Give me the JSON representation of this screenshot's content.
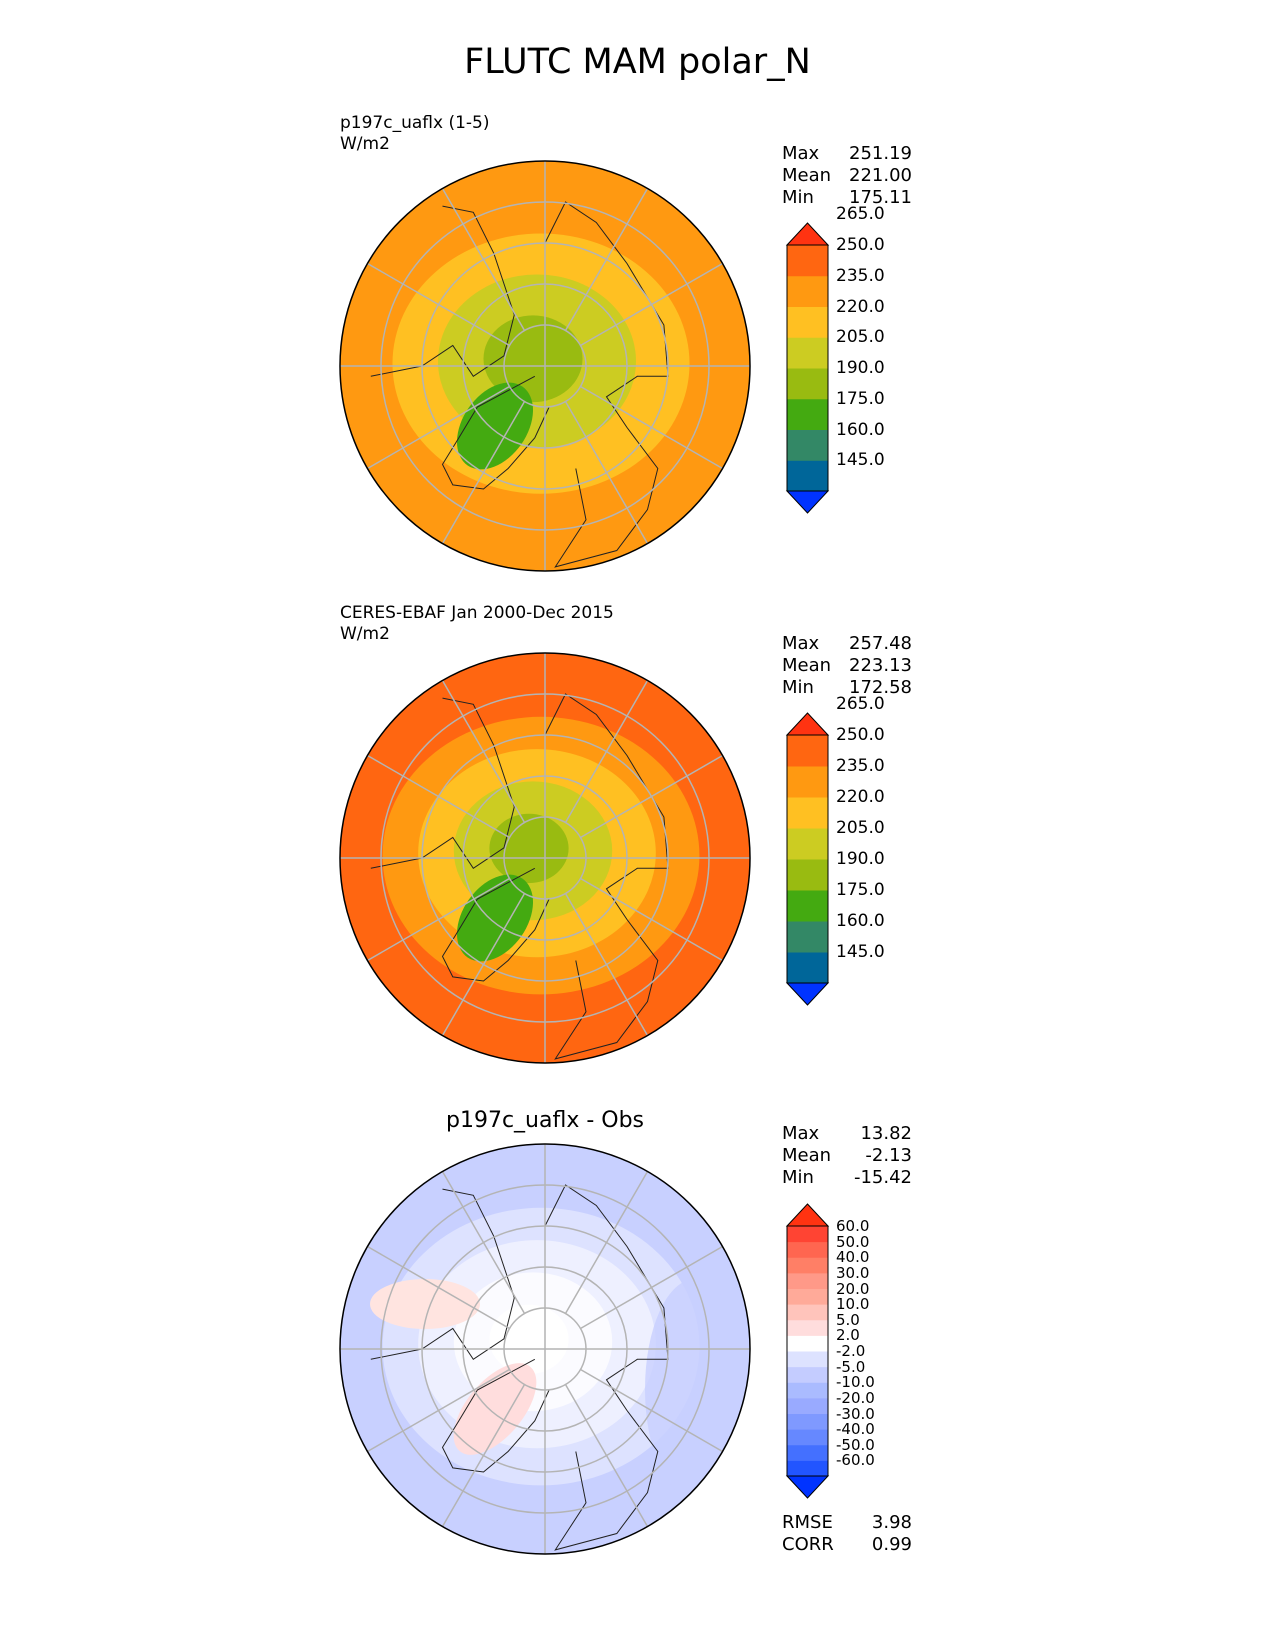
{
  "title": "FLUTC MAM polar_N",
  "panels": [
    {
      "label_line1": "p197c_uaflx (1-5)",
      "label_line2": "W/m2",
      "stats": [
        {
          "k": "Max",
          "v": "251.19"
        },
        {
          "k": "Mean",
          "v": "221.00"
        },
        {
          "k": "Min",
          "v": "175.11"
        }
      ],
      "colorbar": {
        "colors": [
          "#0033ff",
          "#006699",
          "#338866",
          "#44aa11",
          "#99bb11",
          "#cccc22",
          "#ffc022",
          "#ff9911",
          "#ff6611",
          "#ff3311"
        ],
        "ticks": [
          "145.0",
          "160.0",
          "175.0",
          "190.0",
          "205.0",
          "220.0",
          "235.0",
          "250.0",
          "265.0"
        ]
      },
      "field": {
        "pole": "#99bb11",
        "bands": [
          "#99bb11",
          "#cccc22",
          "#ffc022",
          "#ff9911"
        ]
      }
    },
    {
      "label_line1": "CERES-EBAF Jan 2000-Dec 2015",
      "label_line2": "W/m2",
      "stats": [
        {
          "k": "Max",
          "v": "257.48"
        },
        {
          "k": "Mean",
          "v": "223.13"
        },
        {
          "k": "Min",
          "v": "172.58"
        }
      ],
      "colorbar": {
        "colors": [
          "#0033ff",
          "#006699",
          "#338866",
          "#44aa11",
          "#99bb11",
          "#cccc22",
          "#ffc022",
          "#ff9911",
          "#ff6611",
          "#ff3311"
        ],
        "ticks": [
          "145.0",
          "160.0",
          "175.0",
          "190.0",
          "205.0",
          "220.0",
          "235.0",
          "250.0",
          "265.0"
        ]
      },
      "field": {
        "pole": "#99bb11",
        "bands": [
          "#99bb11",
          "#cccc22",
          "#ffc022",
          "#ff9911",
          "#ff6611"
        ]
      }
    },
    {
      "plot_title": "p197c_uaflx - Obs",
      "stats": [
        {
          "k": "Max",
          "v": "13.82"
        },
        {
          "k": "Mean",
          "v": "-2.13"
        },
        {
          "k": "Min",
          "v": "-15.42"
        }
      ],
      "colorbar": {
        "colors": [
          "#0033ff",
          "#2255ff",
          "#4470ff",
          "#6688ff",
          "#7f99ff",
          "#99aaff",
          "#aabbff",
          "#c4ccff",
          "#dde2ff",
          "#ffffff",
          "#ffdddd",
          "#ffc4bb",
          "#ffaa99",
          "#ff9988",
          "#ff7f66",
          "#ff6650",
          "#ff4433",
          "#ff3311"
        ],
        "ticks": [
          "-60.0",
          "-50.0",
          "-40.0",
          "-30.0",
          "-20.0",
          "-10.0",
          "-5.0",
          "-2.0",
          "2.0",
          "5.0",
          "10.0",
          "20.0",
          "30.0",
          "40.0",
          "50.0",
          "60.0"
        ]
      },
      "field": {
        "pole": "#ffffff",
        "bands": [
          "#ffffff",
          "#fbfbff",
          "#eef0ff",
          "#dde2ff",
          "#c8d0ff"
        ]
      },
      "extra": [
        {
          "k": "RMSE",
          "v": "3.98"
        },
        {
          "k": "CORR",
          "v": "0.99"
        }
      ]
    }
  ]
}
